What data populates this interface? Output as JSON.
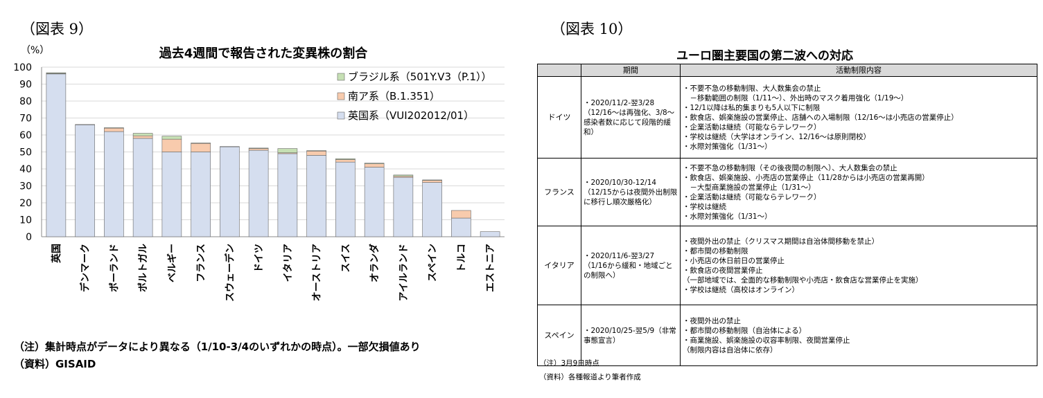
{
  "fig9": {
    "label": "（図表 9）"
  },
  "fig10": {
    "label": "（図表 10）"
  },
  "chart_data": {
    "type": "bar",
    "stacked": true,
    "title": "過去4週間で報告された変異株の割合",
    "ylabel": "（%）",
    "ylim": [
      0,
      100
    ],
    "yticks": [
      0,
      10,
      20,
      30,
      40,
      50,
      60,
      70,
      80,
      90,
      100
    ],
    "categories": [
      "英国",
      "デンマーク",
      "ポーランド",
      "ポルトガル",
      "ベルギー",
      "フランス",
      "スウェーデン",
      "ドイツ",
      "イタリア",
      "オーストリア",
      "スイス",
      "オランダ",
      "アイルランド",
      "スペイン",
      "トルコ",
      "エストニア"
    ],
    "series": [
      {
        "name": "英国系（VUI202012/01）",
        "color": "#d5deef",
        "values": [
          96,
          66,
          62,
          58,
          50,
          50,
          53,
          51,
          49,
          48,
          44,
          41,
          35,
          32,
          11,
          3
        ]
      },
      {
        "name": "南ア系（B.1.351）",
        "color": "#f8cbad",
        "values": [
          0.3,
          0.2,
          2,
          1.5,
          7.5,
          5,
          0.2,
          1,
          0.5,
          2.5,
          1.5,
          2,
          0.7,
          1.2,
          4.5,
          0
        ]
      },
      {
        "name": "ブラジル系（501Y.V3（P.1））",
        "color": "#c6e0b4",
        "values": [
          0.4,
          0,
          0.3,
          1.5,
          1.8,
          0.3,
          0,
          0.3,
          2.5,
          0.3,
          0.5,
          0.4,
          0.7,
          0.3,
          0,
          0
        ]
      }
    ],
    "legend": "top-right",
    "notes": [
      "（注）集計時点がデータにより異なる（1/10-3/4のいずれかの時点）。一部欠損値あり",
      "（資料）GISAID"
    ]
  },
  "table10": {
    "title": "ユーロ圏主要国の第二波への対応",
    "headers": [
      "期間",
      "活動制限内容"
    ],
    "rows": [
      {
        "country": "ドイツ",
        "period": "・2020/11/2-翌3/28（12/16～は再強化、3/8～感染者数に応じて段階的緩和）",
        "items": [
          "・不要不急の移動制限、大人数集会の禁止",
          "　－移動範囲の制限（1/11～）、外出時のマスク着用強化（1/19～）",
          "・12/1以降は私的集まりも5人以下に制限",
          "・飲食店、娯楽施設の営業停止、店舗への入場制限（12/16～は小売店の営業停止）",
          "・企業活動は継続（可能ならテレワーク）",
          "・学校は継続（大学はオンライン、12/16～は原則閉校）",
          "・水際対策強化（1/31～）"
        ]
      },
      {
        "country": "フランス",
        "period": "・2020/10/30-12/14（12/15からは夜間外出制限に移行し順次厳格化）",
        "items": [
          "・不要不急の移動制限（その後夜間の制限へ）、大人数集会の禁止",
          "・飲食店、娯楽施設、小売店の営業停止（11/28からは小売店の営業再開）",
          "　－大型商業施設の営業停止（1/31～）",
          "・企業活動は継続（可能ならテレワーク）",
          "・学校は継続",
          "・水際対策強化（1/31～）"
        ]
      },
      {
        "country": "イタリア",
        "period": "・2020/11/6-翌3/27（1/16から緩和・地域ごとの制限へ）",
        "items": [
          "・夜間外出の禁止（クリスマス期間は自治体間移動を禁止）",
          "・都市間の移動制限",
          "・小売店の休日前日の営業停止",
          "・飲食店の夜間営業停止",
          "（一部地域では、全面的な移動制限や小売店・飲食店な営業停止を実施）",
          "・学校は継続（高校はオンライン）"
        ]
      },
      {
        "country": "スペイン",
        "period": "・2020/10/25-翌5/9（非常事態宣言）",
        "items": [
          "・夜間外出の禁止",
          "・都市間の移動制限（自治体による）",
          "・商業施設、娯楽施設の収容率制限、夜間営業停止",
          "（制限内容は自治体に依存）"
        ]
      }
    ],
    "notes": [
      "（注）3月9日時点",
      "（資料）各種報道より筆者作成"
    ]
  }
}
